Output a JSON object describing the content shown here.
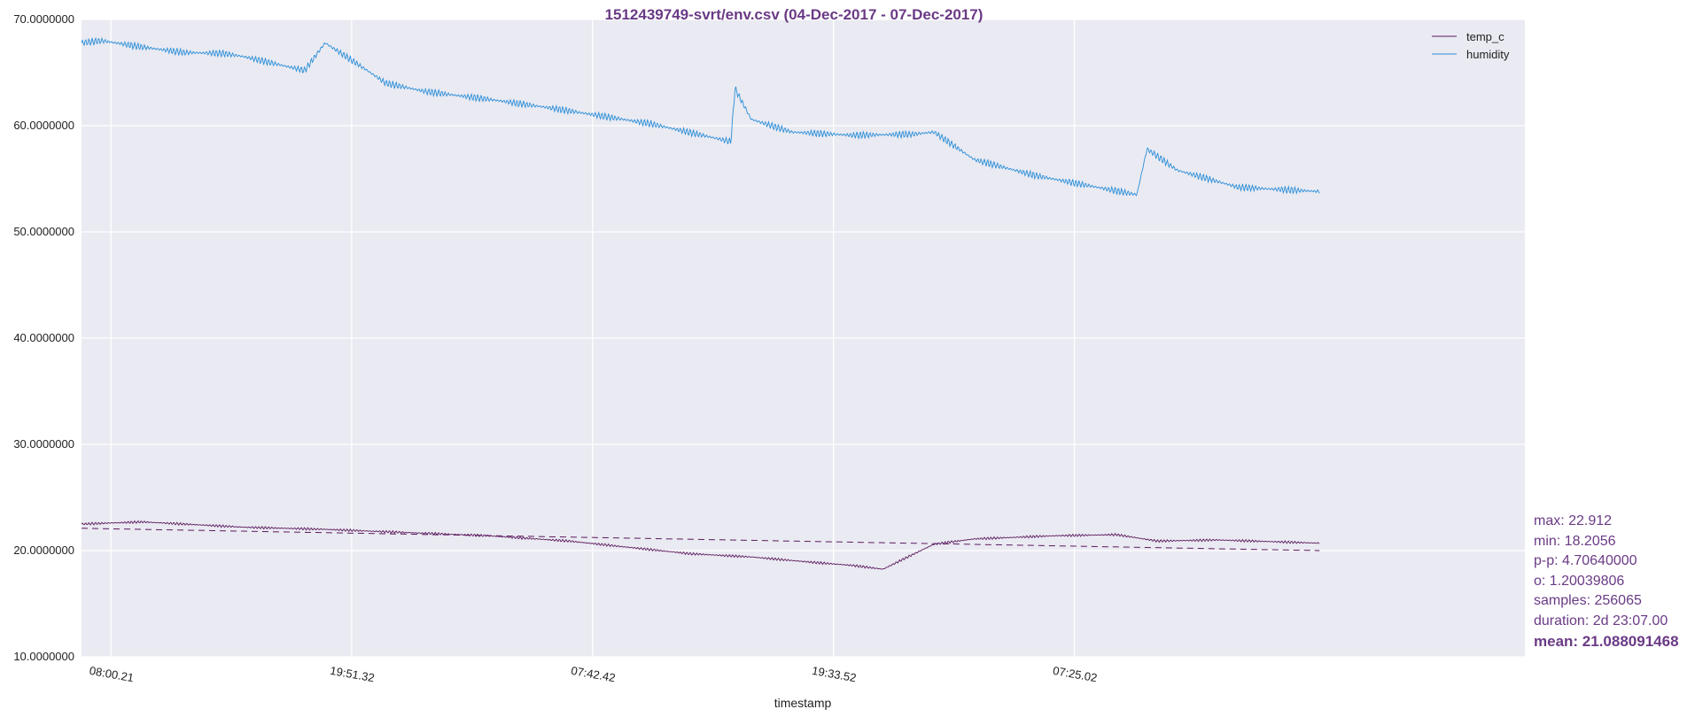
{
  "chart_data": {
    "type": "line",
    "title": "1512439749-svrt/env.csv (04-Dec-2017 - 07-Dec-2017)",
    "xlabel": "timestamp",
    "ylabel": "",
    "x_tick_labels": [
      "08:00.21",
      "19:51.32",
      "07:42.42",
      "19:33.52",
      "07:25.02"
    ],
    "y_tick_labels": [
      "10.0000000",
      "20.0000000",
      "30.0000000",
      "40.0000000",
      "50.0000000",
      "60.0000000",
      "70.0000000"
    ],
    "ylim": [
      10,
      70
    ],
    "xlim_hours": [
      0,
      71.12
    ],
    "x_tick_hours": [
      1.45,
      13.31,
      25.18,
      37.05,
      48.92
    ],
    "grid": true,
    "legend_placement": "top-right",
    "colors": {
      "background": "#eaeaf2",
      "grid": "#ffffff",
      "temp_c": "#5b1a5e",
      "humidity": "#2a8ed8",
      "trend": "#5b1a5e",
      "title": "#6a3a85",
      "stats": "#6a3a85"
    },
    "series": [
      {
        "name": "temp_c",
        "x": [
          0,
          1.5,
          3,
          5,
          8,
          12,
          16,
          20,
          24,
          27,
          30,
          33,
          36,
          38,
          39.5,
          40.5,
          42,
          44,
          48,
          51,
          53,
          56,
          61
        ],
        "y": [
          22.5,
          22.6,
          22.7,
          22.5,
          22.2,
          22.0,
          21.7,
          21.4,
          20.9,
          20.3,
          19.7,
          19.4,
          18.9,
          18.6,
          18.25,
          19.2,
          20.6,
          21.1,
          21.4,
          21.5,
          20.9,
          21.0,
          20.7
        ]
      },
      {
        "name": "humidity",
        "x": [
          0,
          1,
          3,
          5,
          7,
          8,
          11,
          12,
          14,
          15,
          17,
          20,
          23,
          25,
          28,
          32,
          32.2,
          33,
          35,
          38,
          41,
          42,
          44,
          47,
          52,
          52.5,
          54,
          57,
          61
        ],
        "y": [
          67.8,
          68.0,
          67.4,
          66.9,
          66.8,
          66.5,
          65.2,
          67.8,
          65.3,
          64.0,
          63.2,
          62.5,
          61.7,
          61.1,
          60.2,
          58.5,
          63.5,
          60.6,
          59.4,
          59.1,
          59.2,
          59.4,
          56.8,
          55.3,
          53.5,
          57.8,
          55.8,
          54.2,
          53.8
        ]
      }
    ],
    "trend_line": {
      "x": [
        0,
        61
      ],
      "y": [
        22.1,
        20.0
      ]
    },
    "stats": {
      "max": "max: 22.912",
      "min": "min: 18.2056",
      "pp": "p-p: 4.70640000",
      "sigma": "o: 1.20039806",
      "samples": "samples: 256065",
      "duration": "duration: 2d 23:07.00",
      "mean": "mean: 21.088091468"
    }
  }
}
